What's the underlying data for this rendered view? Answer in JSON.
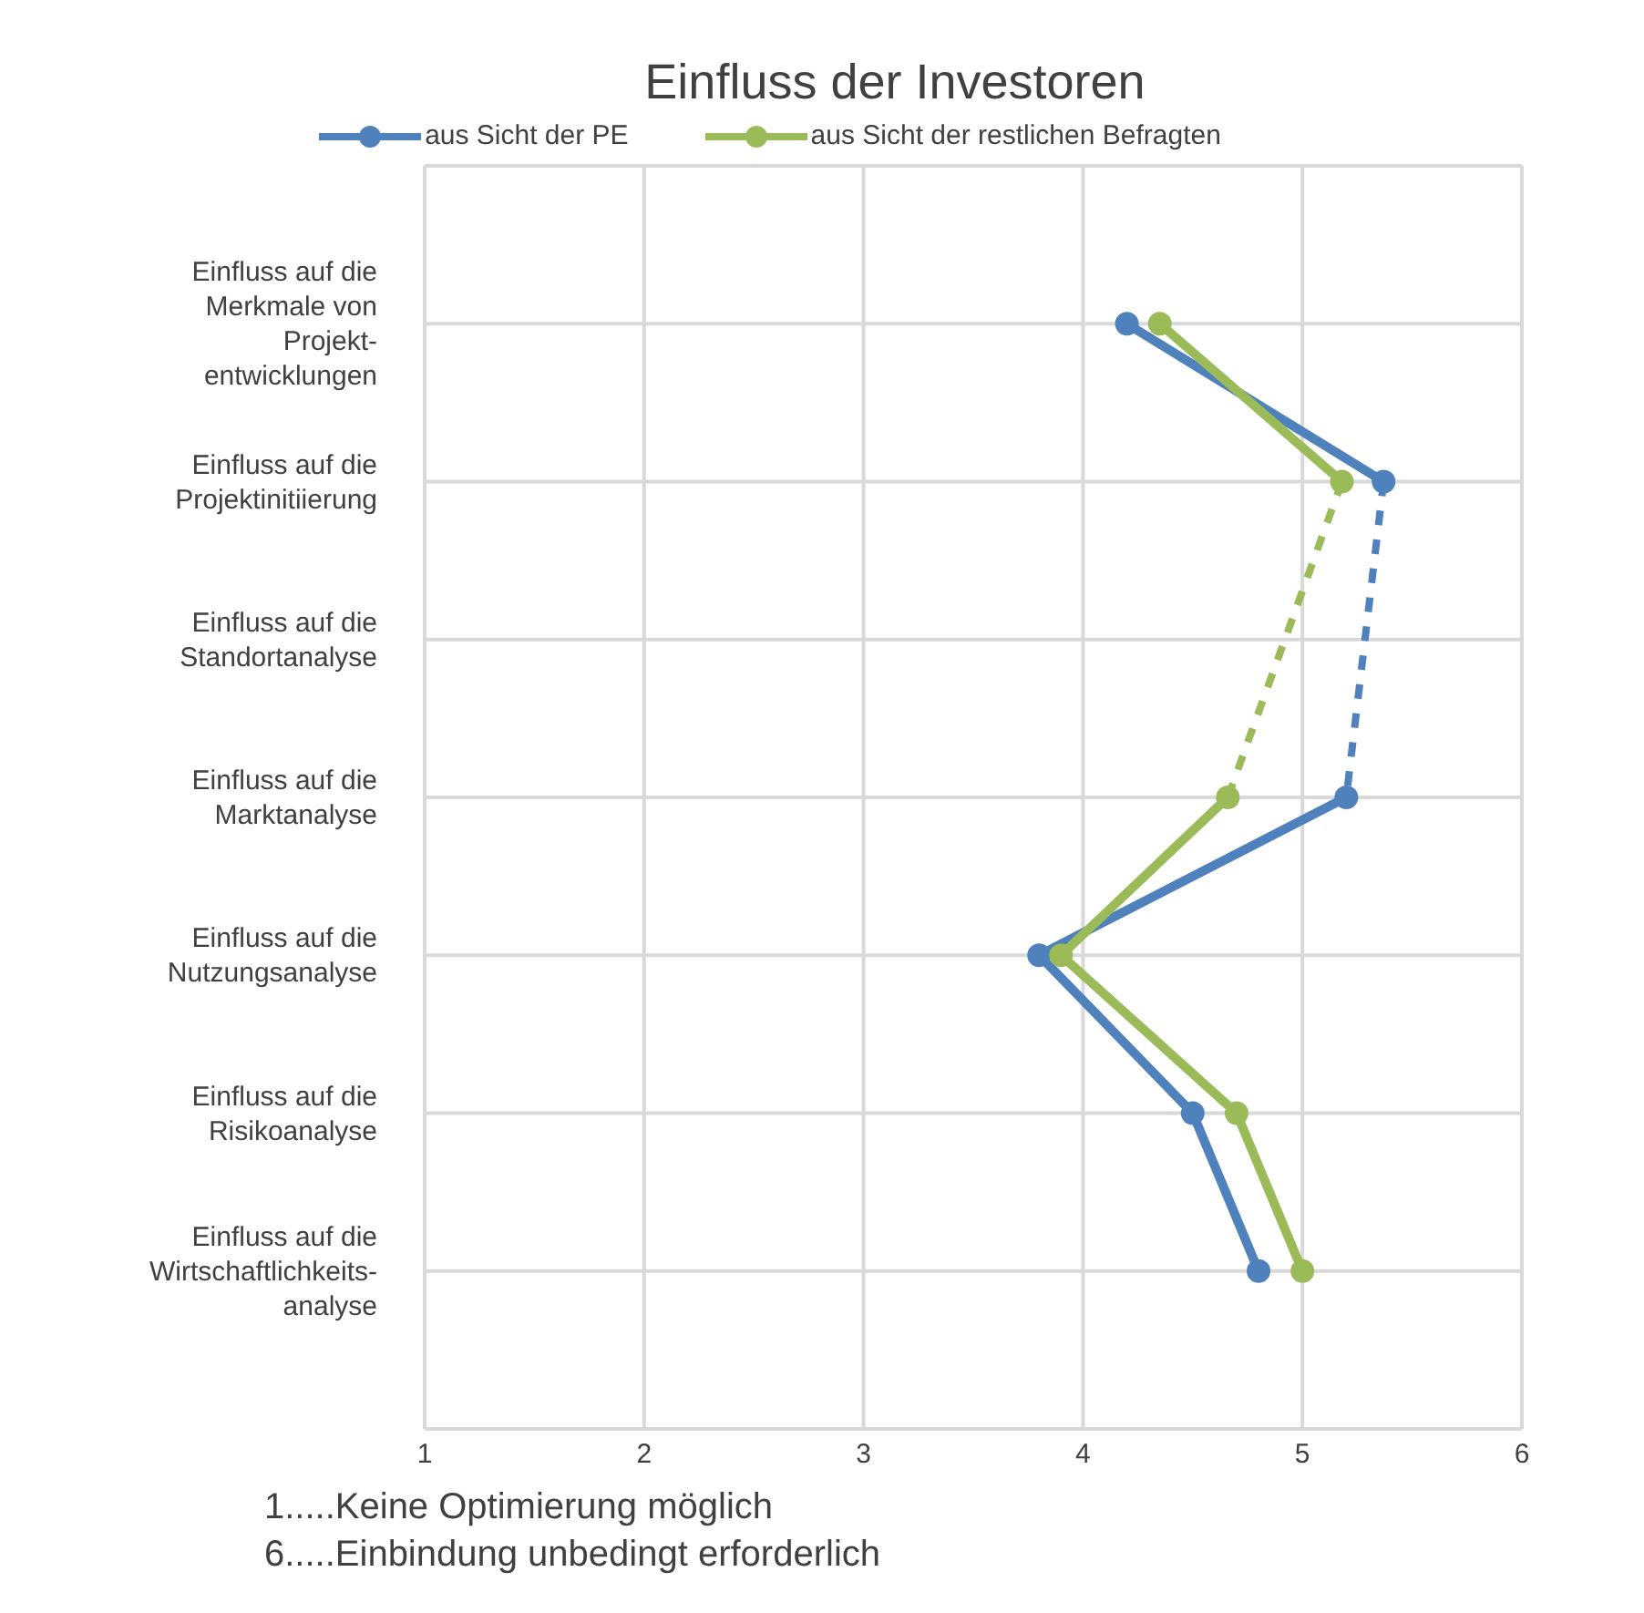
{
  "chart_data": {
    "type": "line",
    "orientation": "horizontal",
    "title": "Einfluss der Investoren",
    "categories": [
      "Einfluss auf die\nMerkmale von\nProjekt-\nentwicklungen",
      "Einfluss auf die\nProjektinitiierung",
      "Einfluss auf die\nStandortanalyse",
      "Einfluss auf die\nMarktanalyse",
      "Einfluss auf die\nNutzungsanalyse",
      "Einfluss auf die\nRisikoanalyse",
      "Einfluss auf die\nWirtschaftlichkeits-\nanalyse"
    ],
    "series": [
      {
        "name": "aus Sicht der PE",
        "color": "#4f81bd",
        "values": [
          4.2,
          5.37,
          null,
          5.2,
          3.8,
          4.5,
          4.8
        ]
      },
      {
        "name": "aus Sicht der restlichen Befragten",
        "color": "#9bbb59",
        "values": [
          4.35,
          5.18,
          null,
          4.66,
          3.9,
          4.7,
          5.0
        ]
      }
    ],
    "xlim": [
      1,
      6
    ],
    "xticks": [
      1,
      2,
      3,
      4,
      5,
      6
    ],
    "grid": true,
    "legend": "top",
    "marker": "circle",
    "line_style": "solid",
    "annotations": [
      "1.....Keine Optimierung möglich",
      "6.....Einbindung unbedingt erforderlich"
    ]
  }
}
